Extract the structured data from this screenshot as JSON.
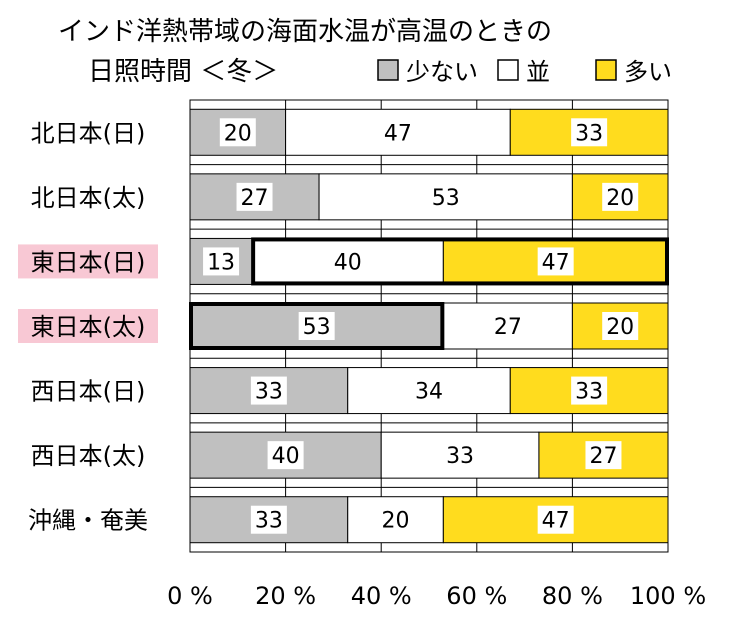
{
  "chart_data": {
    "type": "bar",
    "stacked": true,
    "orientation": "horizontal",
    "title_line1": "インド洋熱帯域の海面水温が高温のときの",
    "title_line2": "日照時間 ＜冬＞",
    "categories": [
      "北日本(日)",
      "北日本(太)",
      "東日本(日)",
      "東日本(太)",
      "西日本(日)",
      "西日本(太)",
      "沖縄・奄美"
    ],
    "highlighted_categories": [
      "東日本(日)",
      "東日本(太)"
    ],
    "series": [
      {
        "name": "少ない",
        "color": "#c0c0c0",
        "values": [
          20,
          27,
          13,
          53,
          33,
          40,
          33
        ]
      },
      {
        "name": "並",
        "color": "#ffffff",
        "values": [
          47,
          53,
          40,
          27,
          34,
          33,
          20
        ]
      },
      {
        "name": "多い",
        "color": "#ffdc1e",
        "values": [
          33,
          20,
          47,
          20,
          33,
          27,
          47
        ]
      }
    ],
    "emphasized_segments": [
      {
        "category": "東日本(日)",
        "series": [
          "並",
          "多い"
        ]
      },
      {
        "category": "東日本(太)",
        "series": [
          "少ない"
        ]
      }
    ],
    "x_ticks": [
      "0 %",
      "20 %",
      "40 %",
      "60 %",
      "80 %",
      "100 %"
    ],
    "xlim": [
      0,
      100
    ],
    "legend_position": "top-right",
    "grid": true,
    "highlight_color": "#f8c8d4"
  }
}
